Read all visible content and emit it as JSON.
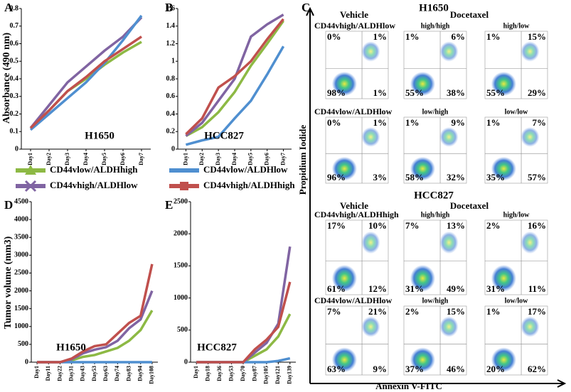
{
  "chart_data": [
    {
      "type": "line",
      "letter": "A",
      "ylabel": "Absorbance (490 nm)",
      "annotation": "H1650",
      "categories": [
        "Day1",
        "Day2",
        "Day3",
        "Day4",
        "Day5",
        "Day6",
        "Day7"
      ],
      "ylim": [
        0,
        0.8
      ],
      "yticks": [
        0,
        0.1,
        0.2,
        0.3,
        0.4,
        0.5,
        0.6,
        0.7,
        0.8
      ],
      "series": [
        {
          "name": "CD44vlow/ALDHhigh",
          "color": "#8db944",
          "marker": "triangle",
          "values": [
            0.12,
            0.22,
            0.33,
            0.4,
            0.48,
            0.55,
            0.61
          ]
        },
        {
          "name": "CD44vhigh/ALDHlow",
          "color": "#8064a2",
          "marker": "x",
          "values": [
            0.12,
            0.25,
            0.38,
            0.47,
            0.56,
            0.64,
            0.75
          ]
        },
        {
          "name": "CD44vlow/ALDHlow",
          "color": "#4f8fd0",
          "marker": "none",
          "values": [
            0.11,
            0.2,
            0.29,
            0.38,
            0.49,
            0.62,
            0.76
          ]
        },
        {
          "name": "CD44vhigh/ALDHhigh",
          "color": "#c0504d",
          "marker": "square",
          "values": [
            0.12,
            0.22,
            0.33,
            0.41,
            0.5,
            0.57,
            0.64
          ]
        }
      ]
    },
    {
      "type": "line",
      "letter": "B",
      "annotation": "HCC827",
      "categories": [
        "Day1",
        "Day2",
        "Day3",
        "Day4",
        "Day5",
        "Day6",
        "Day7"
      ],
      "ylim": [
        0,
        1.6
      ],
      "yticks": [
        0,
        0.2,
        0.4,
        0.6,
        0.8,
        1,
        1.2,
        1.4,
        1.6
      ],
      "series": [
        {
          "color": "#8db944",
          "values": [
            0.15,
            0.25,
            0.42,
            0.65,
            0.95,
            1.2,
            1.46
          ]
        },
        {
          "color": "#8064a2",
          "values": [
            0.15,
            0.3,
            0.55,
            0.8,
            1.28,
            1.42,
            1.53
          ]
        },
        {
          "color": "#4f8fd0",
          "values": [
            0.05,
            0.1,
            0.14,
            0.35,
            0.55,
            0.85,
            1.17
          ]
        },
        {
          "color": "#c0504d",
          "values": [
            0.17,
            0.35,
            0.7,
            0.83,
            1.0,
            1.25,
            1.48
          ]
        }
      ]
    },
    {
      "type": "line",
      "letter": "D",
      "ylabel": "Tumor volume (mm3)",
      "annotation": "H1650",
      "categories": [
        "Day1",
        "Day11",
        "Day22",
        "Day31",
        "Day43",
        "Day53",
        "Day63",
        "Day74",
        "Day83",
        "Day94",
        "Day108"
      ],
      "ylim": [
        0,
        4500
      ],
      "yticks": [
        0,
        500,
        1000,
        1500,
        2000,
        2500,
        3000,
        3500,
        4000,
        4500
      ],
      "series": [
        {
          "color": "#8db944",
          "values": [
            0,
            0,
            0,
            50,
            150,
            200,
            300,
            400,
            600,
            900,
            1450
          ]
        },
        {
          "color": "#8064a2",
          "values": [
            0,
            0,
            0,
            80,
            250,
            350,
            420,
            600,
            950,
            1200,
            2000
          ]
        },
        {
          "color": "#4f8fd0",
          "values": [
            0,
            0,
            0,
            0,
            0,
            0,
            0,
            0,
            0,
            0,
            0
          ]
        },
        {
          "color": "#c0504d",
          "values": [
            0,
            0,
            0,
            100,
            300,
            450,
            500,
            800,
            1100,
            1300,
            2750
          ]
        }
      ]
    },
    {
      "type": "line",
      "letter": "E",
      "annotation": "HCC827",
      "categories": [
        "Day1",
        "Day18",
        "Day36",
        "Day53",
        "Day70",
        "Day87",
        "Day105",
        "Day121",
        "Day139"
      ],
      "ylim": [
        0,
        2500
      ],
      "yticks": [
        0,
        500,
        1000,
        1500,
        2000,
        2500
      ],
      "series": [
        {
          "color": "#8db944",
          "values": [
            0,
            0,
            0,
            0,
            0,
            100,
            200,
            400,
            750
          ]
        },
        {
          "color": "#8064a2",
          "values": [
            0,
            0,
            0,
            0,
            0,
            150,
            300,
            600,
            1800
          ]
        },
        {
          "color": "#4f8fd0",
          "values": [
            0,
            0,
            0,
            0,
            0,
            0,
            0,
            20,
            60
          ]
        },
        {
          "color": "#c0504d",
          "values": [
            0,
            0,
            0,
            0,
            0,
            200,
            350,
            550,
            1250
          ]
        }
      ]
    }
  ],
  "flow": {
    "letter": "C",
    "y_label": "Propidium Iodide",
    "x_label": "Annexin V-FITC",
    "groups": [
      {
        "title": "H1650",
        "col_titles": [
          "Vehicle",
          "Docetaxel"
        ],
        "rows": [
          {
            "label": "CD44vhigh/ALDHlow",
            "panels": [
              {
                "quadrants": [
                  "0%",
                  "1%",
                  "98%",
                  "1%"
                ]
              },
              {
                "label": "high/high",
                "quadrants": [
                  "1%",
                  "6%",
                  "55%",
                  "38%"
                ]
              },
              {
                "label": "high/low",
                "quadrants": [
                  "1%",
                  "15%",
                  "55%",
                  "29%"
                ]
              }
            ]
          },
          {
            "label": "CD44vlow/ALDHlow",
            "panels": [
              {
                "quadrants": [
                  "0%",
                  "1%",
                  "96%",
                  "3%"
                ]
              },
              {
                "label": "low/high",
                "quadrants": [
                  "1%",
                  "9%",
                  "58%",
                  "32%"
                ]
              },
              {
                "label": "low/low",
                "quadrants": [
                  "1%",
                  "7%",
                  "35%",
                  "57%"
                ]
              }
            ]
          }
        ]
      },
      {
        "title": "HCC827",
        "col_titles": [
          "Vehicle",
          "Docetaxel"
        ],
        "rows": [
          {
            "label": "CD44vhigh/ALDHhigh",
            "panels": [
              {
                "quadrants": [
                  "17%",
                  "10%",
                  "61%",
                  "12%"
                ]
              },
              {
                "label": "high/high",
                "quadrants": [
                  "7%",
                  "13%",
                  "31%",
                  "49%"
                ]
              },
              {
                "label": "high/low",
                "quadrants": [
                  "2%",
                  "16%",
                  "31%",
                  "11%"
                ]
              }
            ]
          },
          {
            "label": "CD44vlow/ALDHlow",
            "panels": [
              {
                "quadrants": [
                  "7%",
                  "21%",
                  "63%",
                  "9%"
                ]
              },
              {
                "label": "low/high",
                "quadrants": [
                  "2%",
                  "15%",
                  "37%",
                  "46%"
                ]
              },
              {
                "label": "low/low",
                "quadrants": [
                  "1%",
                  "17%",
                  "20%",
                  "62%"
                ]
              }
            ]
          }
        ]
      }
    ]
  }
}
